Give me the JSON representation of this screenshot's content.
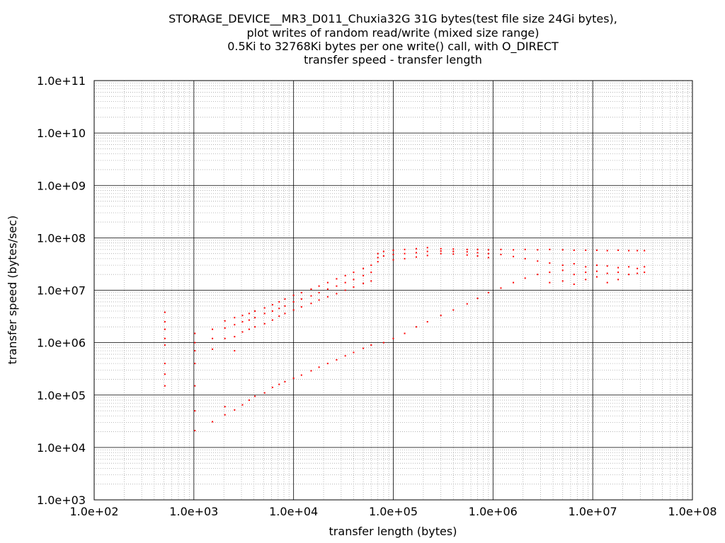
{
  "chart_data": {
    "type": "scatter",
    "title_lines": [
      "STORAGE_DEVICE__MR3_D011_Chuxia32G 31G bytes(test file size 24Gi bytes),",
      "plot writes of random read/write (mixed size range)",
      "0.5Ki to 32768Ki bytes per one write() call, with O_DIRECT",
      "transfer speed - transfer length"
    ],
    "xlabel": "transfer length (bytes)",
    "ylabel": "transfer speed (bytes/sec)",
    "x_scale": "log",
    "y_scale": "log",
    "xlim": [
      100,
      100000000
    ],
    "ylim": [
      1000,
      100000000000
    ],
    "grid": true,
    "x_ticks": [
      {
        "value": 100,
        "label": "1.0e+02"
      },
      {
        "value": 1000,
        "label": "1.0e+03"
      },
      {
        "value": 10000,
        "label": "1.0e+04"
      },
      {
        "value": 100000,
        "label": "1.0e+05"
      },
      {
        "value": 1000000,
        "label": "1.0e+06"
      },
      {
        "value": 10000000,
        "label": "1.0e+07"
      },
      {
        "value": 100000000,
        "label": "1.0e+08"
      }
    ],
    "y_ticks": [
      {
        "value": 1000,
        "label": "1.0e+03"
      },
      {
        "value": 10000,
        "label": "1.0e+04"
      },
      {
        "value": 100000,
        "label": "1.0e+05"
      },
      {
        "value": 1000000,
        "label": "1.0e+06"
      },
      {
        "value": 10000000,
        "label": "1.0e+07"
      },
      {
        "value": 100000000,
        "label": "1.0e+08"
      },
      {
        "value": 1000000000,
        "label": "1.0e+09"
      },
      {
        "value": 10000000000,
        "label": "1.0e+10"
      },
      {
        "value": 100000000000,
        "label": "1.0e+11"
      }
    ],
    "series": [
      {
        "color": "#ff0000",
        "points": [
          [
            512,
            3800000
          ],
          [
            512,
            2500000
          ],
          [
            512,
            1800000
          ],
          [
            512,
            1200000
          ],
          [
            512,
            900000
          ],
          [
            512,
            400000
          ],
          [
            512,
            250000
          ],
          [
            512,
            150000
          ],
          [
            1024,
            1500000
          ],
          [
            1024,
            1000000
          ],
          [
            1024,
            700000
          ],
          [
            1024,
            400000
          ],
          [
            1024,
            150000
          ],
          [
            1024,
            50000
          ],
          [
            1024,
            21000
          ],
          [
            1536,
            1800000
          ],
          [
            1536,
            1200000
          ],
          [
            1536,
            750000
          ],
          [
            1536,
            31000
          ],
          [
            2048,
            2600000
          ],
          [
            2048,
            1900000
          ],
          [
            2048,
            1200000
          ],
          [
            2048,
            60000
          ],
          [
            2048,
            42000
          ],
          [
            2560,
            3000000
          ],
          [
            2560,
            2200000
          ],
          [
            2560,
            1300000
          ],
          [
            2560,
            700000
          ],
          [
            2560,
            52000
          ],
          [
            3072,
            3300000
          ],
          [
            3072,
            2500000
          ],
          [
            3072,
            1600000
          ],
          [
            3072,
            65000
          ],
          [
            3584,
            3600000
          ],
          [
            3584,
            2700000
          ],
          [
            3584,
            1800000
          ],
          [
            3584,
            80000
          ],
          [
            4096,
            4000000
          ],
          [
            4096,
            3000000
          ],
          [
            4096,
            2000000
          ],
          [
            4096,
            95000
          ],
          [
            5120,
            4600000
          ],
          [
            5120,
            3600000
          ],
          [
            5120,
            2300000
          ],
          [
            5120,
            110000
          ],
          [
            6144,
            5300000
          ],
          [
            6144,
            4000000
          ],
          [
            6144,
            2700000
          ],
          [
            6144,
            140000
          ],
          [
            7168,
            6000000
          ],
          [
            7168,
            4500000
          ],
          [
            7168,
            3200000
          ],
          [
            7168,
            160000
          ],
          [
            8192,
            6800000
          ],
          [
            8192,
            5000000
          ],
          [
            8192,
            3600000
          ],
          [
            8192,
            180000
          ],
          [
            10000,
            8000000
          ],
          [
            10000,
            6000000
          ],
          [
            10000,
            4200000
          ],
          [
            10000,
            210000
          ],
          [
            12000,
            9000000
          ],
          [
            12000,
            6800000
          ],
          [
            12000,
            4800000
          ],
          [
            12000,
            240000
          ],
          [
            15000,
            10500000
          ],
          [
            15000,
            7800000
          ],
          [
            15000,
            5600000
          ],
          [
            15000,
            290000
          ],
          [
            18000,
            12000000
          ],
          [
            18000,
            9000000
          ],
          [
            18000,
            6500000
          ],
          [
            18000,
            340000
          ],
          [
            22000,
            14000000
          ],
          [
            22000,
            10500000
          ],
          [
            22000,
            7500000
          ],
          [
            22000,
            400000
          ],
          [
            27000,
            16500000
          ],
          [
            27000,
            12000000
          ],
          [
            27000,
            8600000
          ],
          [
            27000,
            470000
          ],
          [
            33000,
            19000000
          ],
          [
            33000,
            14000000
          ],
          [
            33000,
            10000000
          ],
          [
            33000,
            560000
          ],
          [
            40000,
            22000000
          ],
          [
            40000,
            16000000
          ],
          [
            40000,
            11500000
          ],
          [
            40000,
            650000
          ],
          [
            50000,
            26000000
          ],
          [
            50000,
            19000000
          ],
          [
            50000,
            13500000
          ],
          [
            50000,
            780000
          ],
          [
            60000,
            30000000
          ],
          [
            60000,
            22000000
          ],
          [
            60000,
            15000000
          ],
          [
            60000,
            900000
          ],
          [
            70000,
            50000000
          ],
          [
            70000,
            42000000
          ],
          [
            70000,
            35000000
          ],
          [
            80000,
            55000000
          ],
          [
            80000,
            45000000
          ],
          [
            80000,
            1000000
          ],
          [
            100000,
            58000000
          ],
          [
            100000,
            48000000
          ],
          [
            100000,
            38000000
          ],
          [
            100000,
            1200000
          ],
          [
            130000,
            60000000
          ],
          [
            130000,
            50000000
          ],
          [
            130000,
            40000000
          ],
          [
            130000,
            1500000
          ],
          [
            170000,
            62000000
          ],
          [
            170000,
            52000000
          ],
          [
            170000,
            43000000
          ],
          [
            170000,
            2000000
          ],
          [
            220000,
            65000000
          ],
          [
            220000,
            55000000
          ],
          [
            220000,
            46000000
          ],
          [
            220000,
            2500000
          ],
          [
            300000,
            62000000
          ],
          [
            300000,
            56000000
          ],
          [
            300000,
            50000000
          ],
          [
            300000,
            3300000
          ],
          [
            400000,
            61000000
          ],
          [
            400000,
            55000000
          ],
          [
            400000,
            49000000
          ],
          [
            400000,
            4200000
          ],
          [
            550000,
            60000000
          ],
          [
            550000,
            54000000
          ],
          [
            550000,
            47000000
          ],
          [
            550000,
            5500000
          ],
          [
            700000,
            60000000
          ],
          [
            700000,
            52000000
          ],
          [
            700000,
            45000000
          ],
          [
            700000,
            7000000
          ],
          [
            900000,
            59000000
          ],
          [
            900000,
            50000000
          ],
          [
            900000,
            42000000
          ],
          [
            900000,
            9000000
          ],
          [
            1200000,
            60000000
          ],
          [
            1200000,
            48000000
          ],
          [
            1200000,
            11000000
          ],
          [
            1600000,
            59000000
          ],
          [
            1600000,
            44000000
          ],
          [
            1600000,
            14000000
          ],
          [
            2100000,
            60000000
          ],
          [
            2100000,
            40000000
          ],
          [
            2100000,
            17000000
          ],
          [
            2800000,
            59000000
          ],
          [
            2800000,
            36000000
          ],
          [
            2800000,
            20000000
          ],
          [
            3700000,
            60000000
          ],
          [
            3700000,
            33000000
          ],
          [
            3700000,
            22000000
          ],
          [
            3700000,
            14000000
          ],
          [
            5000000,
            59000000
          ],
          [
            5000000,
            30000000
          ],
          [
            5000000,
            24000000
          ],
          [
            5000000,
            15000000
          ],
          [
            6500000,
            58000000
          ],
          [
            6500000,
            32000000
          ],
          [
            6500000,
            20000000
          ],
          [
            6500000,
            13000000
          ],
          [
            8500000,
            58000000
          ],
          [
            8500000,
            28000000
          ],
          [
            8500000,
            22000000
          ],
          [
            8500000,
            16000000
          ],
          [
            11000000,
            58000000
          ],
          [
            11000000,
            30000000
          ],
          [
            11000000,
            23000000
          ],
          [
            11000000,
            18000000
          ],
          [
            14000000,
            57000000
          ],
          [
            14000000,
            29000000
          ],
          [
            14000000,
            21000000
          ],
          [
            14000000,
            14000000
          ],
          [
            18000000,
            58000000
          ],
          [
            18000000,
            27000000
          ],
          [
            18000000,
            22000000
          ],
          [
            18000000,
            16000000
          ],
          [
            23000000,
            57000000
          ],
          [
            23000000,
            28000000
          ],
          [
            23000000,
            20000000
          ],
          [
            28000000,
            57000000
          ],
          [
            28000000,
            26000000
          ],
          [
            28000000,
            21000000
          ],
          [
            33000000,
            57000000
          ],
          [
            33000000,
            28000000
          ],
          [
            33000000,
            22000000
          ]
        ]
      }
    ]
  }
}
